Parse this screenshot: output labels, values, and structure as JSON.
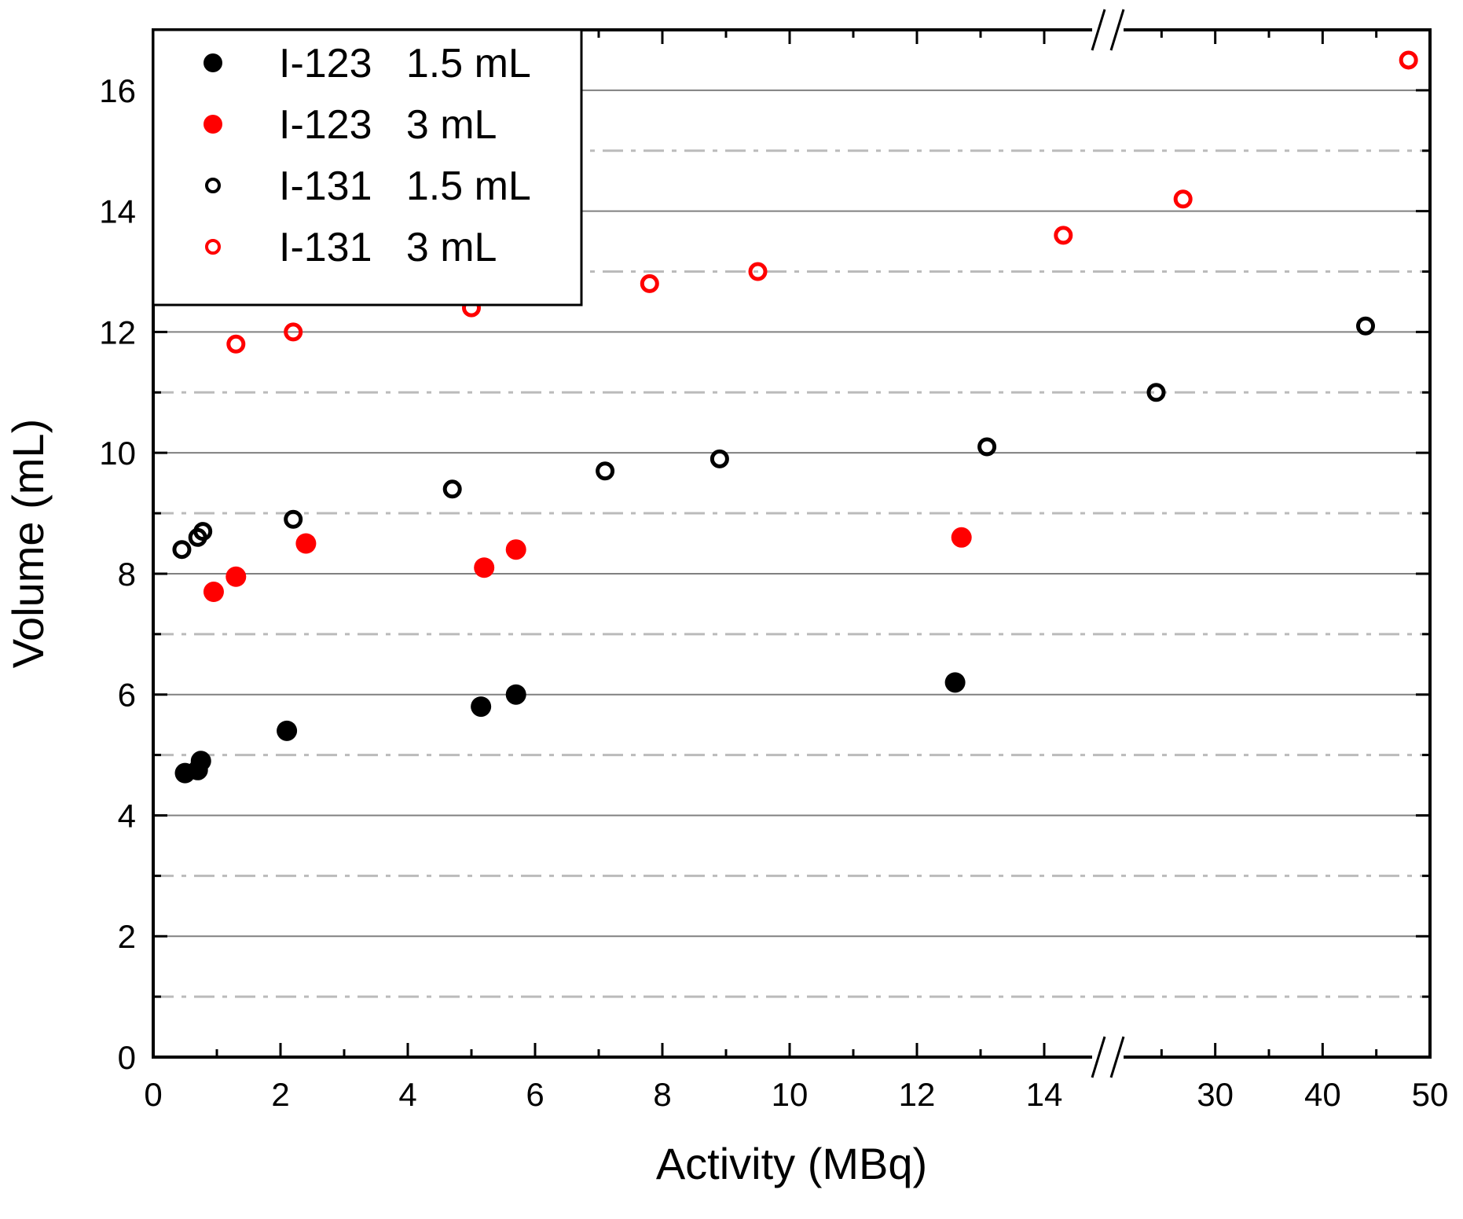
{
  "chart_data": {
    "type": "scatter",
    "xlabel": "Activity (MBq)",
    "ylabel": "Volume (mL)",
    "ylim": [
      0,
      17
    ],
    "x_axis": {
      "broken": true,
      "segments": [
        {
          "range": [
            0,
            15
          ],
          "ticks": [
            0,
            2,
            4,
            6,
            8,
            10,
            12,
            14
          ]
        },
        {
          "range": [
            20,
            50
          ],
          "ticks": [
            30,
            40,
            50
          ]
        }
      ]
    },
    "y_ticks": [
      0,
      2,
      4,
      6,
      8,
      10,
      12,
      14,
      16
    ],
    "grid": {
      "major": "solid",
      "minor": "dash-dot",
      "minor_values": [
        1,
        3,
        5,
        7,
        9,
        11,
        13,
        15
      ]
    },
    "legend": {
      "placement": "top-left"
    },
    "series": [
      {
        "name": "I-123   1.5 mL",
        "color": "#000000",
        "marker": "filled-circle",
        "points": [
          [
            0.5,
            4.7
          ],
          [
            0.7,
            4.75
          ],
          [
            0.75,
            4.9
          ],
          [
            2.1,
            5.4
          ],
          [
            5.15,
            5.8
          ],
          [
            5.7,
            6.0
          ],
          [
            12.6,
            6.2
          ]
        ]
      },
      {
        "name": "I-123   3 mL",
        "color": "#ff0000",
        "marker": "filled-circle",
        "points": [
          [
            0.95,
            7.7
          ],
          [
            1.3,
            7.95
          ],
          [
            2.4,
            8.5
          ],
          [
            5.2,
            8.1
          ],
          [
            5.7,
            8.4
          ],
          [
            12.7,
            8.6
          ]
        ]
      },
      {
        "name": "I-131   1.5 mL",
        "color": "#000000",
        "marker": "open-circle",
        "points": [
          [
            0.45,
            8.4
          ],
          [
            0.7,
            8.6
          ],
          [
            0.78,
            8.7
          ],
          [
            2.2,
            8.9
          ],
          [
            4.7,
            9.4
          ],
          [
            7.1,
            9.7
          ],
          [
            8.9,
            9.9
          ],
          [
            13.1,
            10.1
          ],
          [
            24.5,
            11.0
          ],
          [
            44.0,
            12.1
          ]
        ]
      },
      {
        "name": "I-131   3 mL",
        "color": "#ff0000",
        "marker": "open-circle",
        "points": [
          [
            1.3,
            11.8
          ],
          [
            2.2,
            12.0
          ],
          [
            5.0,
            12.4
          ],
          [
            7.8,
            12.8
          ],
          [
            9.5,
            13.0
          ],
          [
            14.3,
            13.6
          ],
          [
            27.0,
            14.2
          ],
          [
            48.0,
            16.5
          ]
        ]
      }
    ]
  }
}
